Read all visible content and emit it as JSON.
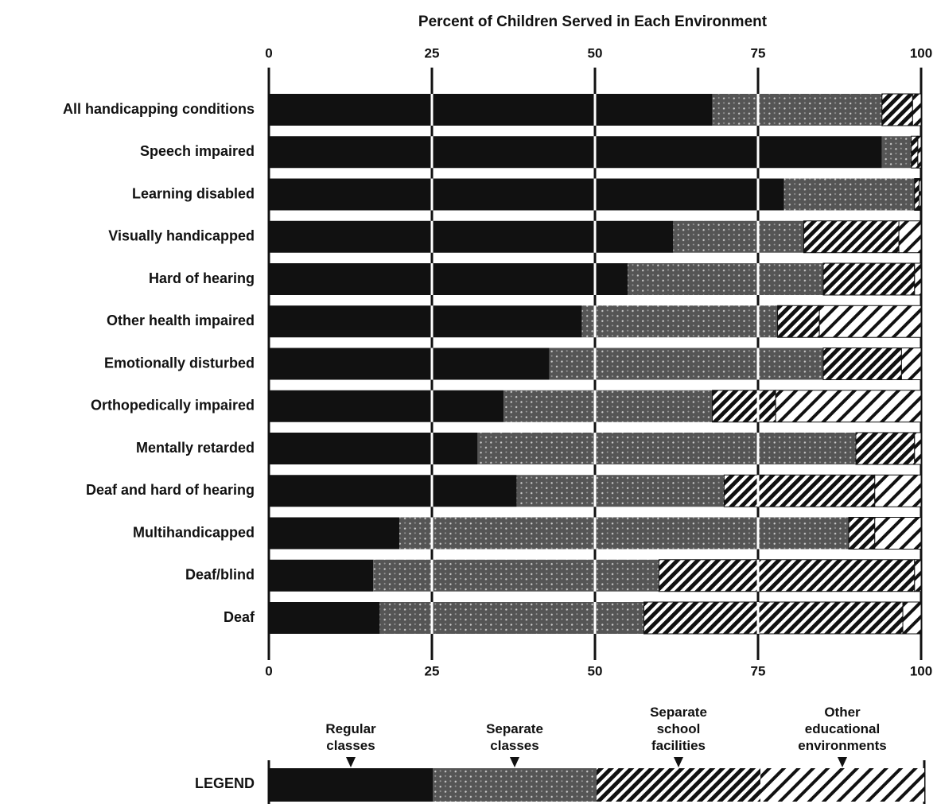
{
  "chart_data": {
    "type": "stacked-bar-horizontal",
    "title": "Percent of Children Served in Each Environment",
    "categories": [
      "All handicapping conditions",
      "Speech impaired",
      "Learning disabled",
      "Visually handicapped",
      "Hard of hearing",
      "Other health impaired",
      "Emotionally disturbed",
      "Orthopedically impaired",
      "Mentally retarded",
      "Deaf and hard of hearing",
      "Multihandicapped",
      "Deaf/blind",
      "Deaf"
    ],
    "series": [
      {
        "name": "Regular classes",
        "color": "#111111",
        "values": [
          68,
          94,
          79,
          62,
          55,
          48,
          43,
          36,
          32,
          38,
          20,
          16,
          17
        ]
      },
      {
        "name": "Separate classes",
        "color": "#555555",
        "values": [
          26,
          4.5,
          20,
          20,
          30,
          30,
          42,
          32,
          58,
          31.8,
          68.9,
          43.8,
          40.5
        ]
      },
      {
        "name": "Separate school facilities",
        "color": "#111111",
        "values": [
          4.7,
          1,
          0.7,
          14.6,
          14,
          6.4,
          12,
          9.7,
          9,
          23.1,
          4,
          39.2,
          39.7
        ]
      },
      {
        "name": "Other educational environments",
        "color": "#111111",
        "values": [
          1.3,
          0.5,
          0.3,
          3.4,
          1,
          15.6,
          3,
          22.3,
          1,
          7.1,
          7.1,
          1,
          2.8
        ]
      }
    ],
    "xlim": [
      0,
      100
    ],
    "xticks": [
      0,
      25,
      50,
      75,
      100
    ],
    "grid": true,
    "legend_title": "LEGEND"
  }
}
